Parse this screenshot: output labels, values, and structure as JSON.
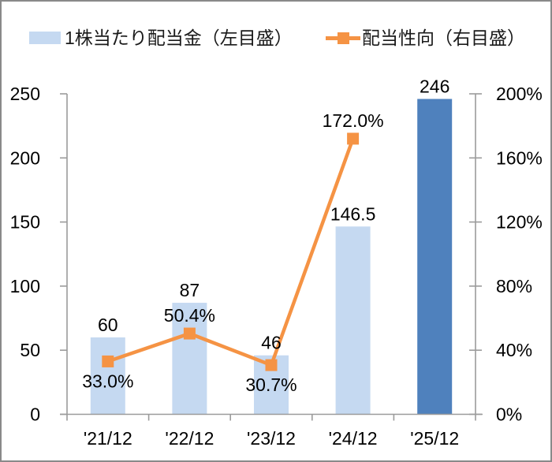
{
  "chart_data": {
    "type": "combo-bar-line",
    "title": "",
    "categories": [
      "'21/12",
      "'22/12",
      "'23/12",
      "'24/12",
      "'25/12"
    ],
    "series": [
      {
        "name": "1株当たり配当金（左目盛）",
        "type": "bar",
        "axis": "left",
        "values": [
          60,
          87,
          46,
          146.5,
          246
        ],
        "labels": [
          "60",
          "87",
          "46",
          "146.5",
          "246"
        ],
        "point_colors": [
          "#c5d9f1",
          "#c5d9f1",
          "#c5d9f1",
          "#c5d9f1",
          "#4f81bd"
        ]
      },
      {
        "name": "配当性向（右目盛）",
        "type": "line",
        "axis": "right",
        "values": [
          33.0,
          50.4,
          30.7,
          172.0,
          null
        ],
        "labels": [
          "33.0%",
          "50.4%",
          "30.7%",
          "172.0%",
          ""
        ],
        "label_positions": [
          "below",
          "above",
          "below",
          "above",
          ""
        ],
        "color": "#f59344"
      }
    ],
    "left_axis": {
      "min": 0,
      "max": 250,
      "ticks": [
        0,
        50,
        100,
        150,
        200,
        250
      ],
      "tick_labels": [
        "0",
        "50",
        "100",
        "150",
        "200",
        "250"
      ]
    },
    "right_axis": {
      "min": 0,
      "max": 200,
      "ticks": [
        0,
        40,
        80,
        120,
        160,
        200
      ],
      "tick_labels": [
        "0%",
        "40%",
        "80%",
        "120%",
        "160%",
        "200%"
      ]
    },
    "legend": {
      "position": "top",
      "items": [
        {
          "label": "1株当たり配当金（左目盛）",
          "swatch": "bar-square",
          "color": "#c5d9f1"
        },
        {
          "label": "配当性向（右目盛）",
          "swatch": "line-marker",
          "color": "#f59344"
        }
      ]
    },
    "grid": "off",
    "axis_color": "#9b9b9b",
    "text_color": "#000000",
    "background_color": "#ffffff",
    "border_color": "#898989"
  }
}
